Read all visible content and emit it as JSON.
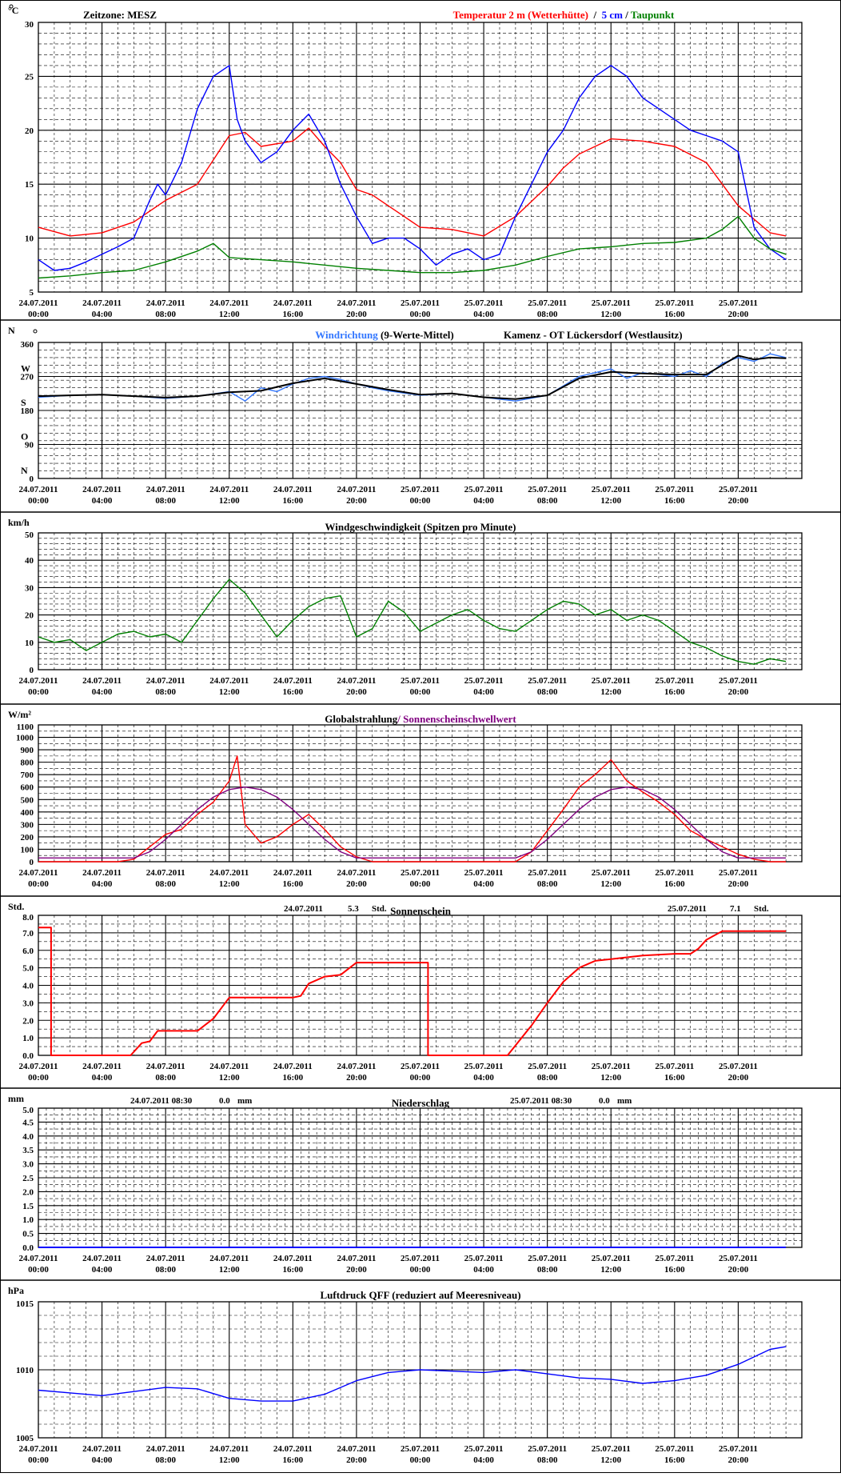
{
  "page": {
    "x_ticks": [
      [
        "24.07.2011",
        "00:00"
      ],
      [
        "24.07.2011",
        "04:00"
      ],
      [
        "24.07.2011",
        "08:00"
      ],
      [
        "24.07.2011",
        "12:00"
      ],
      [
        "24.07.2011",
        "16:00"
      ],
      [
        "24.07.2011",
        "20:00"
      ],
      [
        "25.07.2011",
        "00:00"
      ],
      [
        "25.07.2011",
        "04:00"
      ],
      [
        "25.07.2011",
        "08:00"
      ],
      [
        "25.07.2011",
        "12:00"
      ],
      [
        "25.07.2011",
        "16:00"
      ],
      [
        "25.07.2011",
        "20:00"
      ]
    ]
  },
  "colors": {
    "red": "#ff0000",
    "blue": "#0000ff",
    "green": "#008000",
    "lightblue": "#3377ff",
    "purple": "#800080",
    "black": "#000000"
  },
  "chart_data": [
    {
      "id": "temp",
      "type": "line",
      "unit": "°C",
      "timezone": "Zeitzone: MESZ",
      "title_parts": [
        {
          "text": "Temperatur 2 m (Wetterhütte)",
          "color": "#ff0000"
        },
        {
          "text": "  /  ",
          "color": "#000000"
        },
        {
          "text": "5 cm",
          "color": "#0000ff"
        },
        {
          "text": " / ",
          "color": "#000000"
        },
        {
          "text": "Taupunkt",
          "color": "#008000"
        }
      ],
      "ylim": [
        5,
        30
      ],
      "yticks": [
        5,
        10,
        15,
        20,
        25,
        30
      ],
      "series": [
        {
          "name": "Temperatur 2 m (Wetterhütte)",
          "color": "#ff0000",
          "x": [
            0,
            2,
            4,
            6,
            8,
            10,
            12,
            13,
            14,
            16,
            17,
            18,
            19,
            20,
            21,
            22,
            23,
            24,
            26,
            28,
            30,
            32,
            33,
            34,
            35,
            36,
            38,
            40,
            42,
            44,
            46,
            47
          ],
          "values": [
            11,
            10.2,
            10.5,
            11.5,
            13.5,
            15,
            19.5,
            19.8,
            18.5,
            19,
            20.2,
            18.5,
            17,
            14.5,
            14,
            13,
            12,
            11,
            10.8,
            10.2,
            12,
            14.8,
            16.5,
            17.8,
            18.5,
            19.2,
            19,
            18.5,
            17,
            13,
            10.5,
            10.2
          ]
        },
        {
          "name": "5 cm",
          "color": "#0000ff",
          "x": [
            0,
            1,
            2,
            3,
            4,
            5,
            6,
            7,
            7.5,
            8,
            9,
            10,
            11,
            12,
            12.5,
            13,
            14,
            15,
            16,
            17,
            18,
            19,
            20,
            21,
            22,
            23,
            24,
            25,
            26,
            27,
            28,
            29,
            30,
            31,
            32,
            33,
            34,
            35,
            36,
            37,
            38,
            39,
            40,
            41,
            42,
            43,
            44,
            45,
            46,
            47
          ],
          "values": [
            8,
            7,
            7.2,
            7.8,
            8.5,
            9.2,
            10,
            13.5,
            15,
            14,
            17,
            22,
            25,
            26,
            21,
            19,
            17,
            18,
            20,
            21.5,
            19,
            15,
            12,
            9.5,
            10,
            10,
            9,
            7.5,
            8.5,
            9,
            8,
            8.5,
            12,
            15,
            18,
            20,
            23,
            25,
            26,
            25,
            23,
            22,
            21,
            20,
            19.5,
            19,
            18,
            11,
            9,
            8
          ]
        },
        {
          "name": "Taupunkt",
          "color": "#008000",
          "x": [
            0,
            2,
            4,
            6,
            8,
            10,
            11,
            12,
            14,
            16,
            18,
            20,
            22,
            24,
            26,
            28,
            30,
            32,
            34,
            36,
            38,
            40,
            42,
            43,
            44,
            45,
            46,
            47
          ],
          "values": [
            6.3,
            6.5,
            6.8,
            7,
            7.8,
            8.8,
            9.5,
            8.2,
            8,
            7.8,
            7.5,
            7.2,
            7,
            6.8,
            6.8,
            7,
            7.5,
            8.3,
            9,
            9.2,
            9.5,
            9.6,
            10,
            10.8,
            12,
            10,
            9,
            8.5
          ]
        }
      ]
    },
    {
      "id": "winddir",
      "type": "line",
      "unit": "N",
      "ylim": [
        0,
        360
      ],
      "yticks": [
        0,
        90,
        180,
        270,
        360
      ],
      "compass": [
        {
          "v": 360,
          "t": "N"
        },
        {
          "v": 270,
          "t": "W"
        },
        {
          "v": 180,
          "t": "S"
        },
        {
          "v": 90,
          "t": "O"
        },
        {
          "v": 0,
          "t": "N"
        }
      ],
      "title_parts": [
        {
          "text": "Windrichtung",
          "color": "#3377ff"
        },
        {
          "text": " (9-Werte-Mittel)",
          "color": "#000000"
        }
      ],
      "title_right": "Kamenz - OT Lückersdorf (Westlausitz)",
      "series": [
        {
          "name": "Windrichtung",
          "color": "#3377ff",
          "x": [
            0,
            2,
            4,
            6,
            8,
            10,
            12,
            13,
            14,
            15,
            16,
            17,
            18,
            19,
            20,
            21,
            22,
            24,
            26,
            28,
            30,
            32,
            33,
            34,
            35,
            36,
            37,
            38,
            39,
            40,
            41,
            42,
            43,
            44,
            45,
            46,
            47
          ],
          "values": [
            215,
            220,
            222,
            218,
            212,
            218,
            230,
            205,
            240,
            230,
            250,
            265,
            270,
            262,
            250,
            240,
            232,
            220,
            225,
            215,
            205,
            220,
            245,
            270,
            280,
            290,
            265,
            280,
            275,
            270,
            285,
            270,
            305,
            320,
            310,
            330,
            320
          ]
        },
        {
          "name": "9-Werte-Mittel",
          "color": "#000000",
          "x": [
            0,
            2,
            4,
            6,
            8,
            10,
            12,
            14,
            16,
            18,
            20,
            22,
            24,
            26,
            28,
            30,
            32,
            34,
            36,
            38,
            40,
            42,
            43,
            44,
            45,
            46,
            47
          ],
          "values": [
            218,
            220,
            222,
            218,
            214,
            218,
            228,
            232,
            252,
            265,
            250,
            235,
            222,
            225,
            215,
            210,
            220,
            265,
            282,
            278,
            275,
            275,
            300,
            325,
            315,
            320,
            318
          ]
        }
      ]
    },
    {
      "id": "windspeed",
      "type": "line",
      "unit": "km/h",
      "title": "Windgeschwindigkeit (Spitzen pro Minute)",
      "ylim": [
        0,
        50
      ],
      "yticks": [
        0,
        10,
        20,
        30,
        40,
        50
      ],
      "series": [
        {
          "name": "Windgeschwindigkeit",
          "color": "#008000",
          "x": [
            0,
            1,
            2,
            3,
            4,
            5,
            6,
            7,
            8,
            9,
            10,
            11,
            12,
            13,
            14,
            15,
            16,
            17,
            18,
            19,
            20,
            21,
            22,
            23,
            24,
            25,
            26,
            27,
            28,
            29,
            30,
            31,
            32,
            33,
            34,
            35,
            36,
            37,
            38,
            39,
            40,
            41,
            42,
            43,
            44,
            45,
            46,
            47
          ],
          "values": [
            12,
            10,
            11,
            7,
            10,
            13,
            14,
            12,
            13,
            10,
            18,
            26,
            33,
            28,
            20,
            12,
            18,
            23,
            26,
            27,
            12,
            15,
            25,
            21,
            14,
            17,
            20,
            22,
            18,
            15,
            14,
            18,
            22,
            25,
            24,
            20,
            22,
            18,
            20,
            18,
            14,
            10,
            8,
            5,
            3,
            2,
            4,
            3
          ]
        }
      ]
    },
    {
      "id": "radiation",
      "type": "line",
      "unit": "W/m²",
      "title_parts": [
        {
          "text": "Globalstrahlung",
          "color": "#000000"
        },
        {
          "text": "/ Sonnenscheinschwellwert",
          "color": "#800080"
        }
      ],
      "ylim": [
        0,
        1100
      ],
      "yticks": [
        0,
        100,
        200,
        300,
        400,
        500,
        600,
        700,
        800,
        900,
        1000,
        1100
      ],
      "series": [
        {
          "name": "Globalstrahlung",
          "color": "#ff0000",
          "x": [
            0,
            5,
            6,
            7,
            8,
            9,
            10,
            11,
            12,
            12.5,
            13,
            14,
            15,
            16,
            17,
            18,
            19,
            20,
            21,
            30,
            31,
            32,
            33,
            34,
            35,
            36,
            37,
            38,
            39,
            40,
            41,
            42,
            43,
            44,
            45,
            46,
            47
          ],
          "values": [
            0,
            0,
            20,
            120,
            220,
            260,
            380,
            480,
            650,
            850,
            300,
            150,
            200,
            300,
            380,
            260,
            120,
            40,
            0,
            0,
            80,
            250,
            420,
            600,
            700,
            820,
            650,
            560,
            480,
            380,
            250,
            180,
            120,
            60,
            20,
            0,
            0
          ]
        },
        {
          "name": "Sonnenscheinschwellwert",
          "color": "#800080",
          "x": [
            0,
            6,
            7,
            8,
            9,
            10,
            11,
            12,
            13,
            14,
            15,
            16,
            17,
            18,
            19,
            20,
            21,
            30,
            31,
            32,
            33,
            34,
            35,
            36,
            37,
            38,
            39,
            40,
            41,
            42,
            43,
            44,
            47
          ],
          "values": [
            30,
            30,
            80,
            180,
            300,
            420,
            520,
            580,
            600,
            580,
            520,
            420,
            300,
            180,
            80,
            30,
            30,
            30,
            80,
            180,
            300,
            420,
            520,
            580,
            600,
            580,
            520,
            420,
            300,
            180,
            80,
            30,
            30
          ]
        }
      ]
    },
    {
      "id": "sunshine",
      "type": "line",
      "unit": "Std.",
      "title": "Sonnenschein",
      "annot_left": {
        "date": "24.07.2011",
        "value": "5.3",
        "unit": "Std."
      },
      "annot_right": {
        "date": "25.07.2011",
        "value": "7.1",
        "unit": "Std."
      },
      "ylim": [
        0,
        8
      ],
      "yticks": [
        0,
        1,
        2,
        3,
        4,
        5,
        6,
        7,
        8
      ],
      "series": [
        {
          "name": "Sonnenschein",
          "color": "#ff0000",
          "x": [
            0,
            0.8,
            0.8,
            5.8,
            6.5,
            7,
            7.5,
            8,
            9,
            10,
            11,
            12,
            14,
            16,
            16.5,
            17,
            18,
            19,
            20,
            21,
            24.5,
            24.5,
            29.5,
            31,
            32,
            33,
            34,
            35,
            36,
            38,
            40,
            41,
            41.5,
            42,
            43,
            47
          ],
          "values": [
            7.3,
            7.3,
            0,
            0,
            0.7,
            0.8,
            1.4,
            1.4,
            1.4,
            1.4,
            2.1,
            3.3,
            3.3,
            3.3,
            3.4,
            4.1,
            4.5,
            4.6,
            5.3,
            5.3,
            5.3,
            0,
            0,
            1.7,
            3.0,
            4.2,
            5.0,
            5.4,
            5.5,
            5.7,
            5.8,
            5.8,
            6.1,
            6.6,
            7.1,
            7.1
          ]
        }
      ]
    },
    {
      "id": "precip",
      "type": "bar",
      "unit": "mm",
      "title": "Niederschlag",
      "annot_left": {
        "date": "24.07.2011 08:30",
        "value": "0.0",
        "unit": "mm"
      },
      "annot_right": {
        "date": "25.07.2011 08:30",
        "value": "0.0",
        "unit": "mm"
      },
      "ylim": [
        0,
        5
      ],
      "yticks": [
        0,
        0.5,
        1,
        1.5,
        2,
        2.5,
        3,
        3.5,
        4,
        4.5,
        5
      ],
      "series": [
        {
          "name": "Niederschlag",
          "color": "#0000ff",
          "x": [
            0,
            47
          ],
          "values": [
            0,
            0
          ]
        }
      ]
    },
    {
      "id": "pressure",
      "type": "line",
      "unit": "hPa",
      "title": "Luftdruck QFF (reduziert auf Meeresniveau)",
      "ylim": [
        1005,
        1015
      ],
      "yticks": [
        1005,
        1010,
        1015
      ],
      "series": [
        {
          "name": "Luftdruck QFF",
          "color": "#0000ff",
          "x": [
            0,
            2,
            4,
            6,
            8,
            10,
            12,
            14,
            16,
            18,
            20,
            22,
            24,
            26,
            28,
            30,
            32,
            34,
            36,
            38,
            40,
            42,
            44,
            46,
            47
          ],
          "values": [
            1008.5,
            1008.3,
            1008.1,
            1008.4,
            1008.7,
            1008.6,
            1007.9,
            1007.7,
            1007.7,
            1008.2,
            1009.2,
            1009.8,
            1010,
            1009.9,
            1009.8,
            1010,
            1009.7,
            1009.4,
            1009.3,
            1009.0,
            1009.2,
            1009.6,
            1010.4,
            1011.5,
            1011.7
          ]
        }
      ]
    }
  ]
}
